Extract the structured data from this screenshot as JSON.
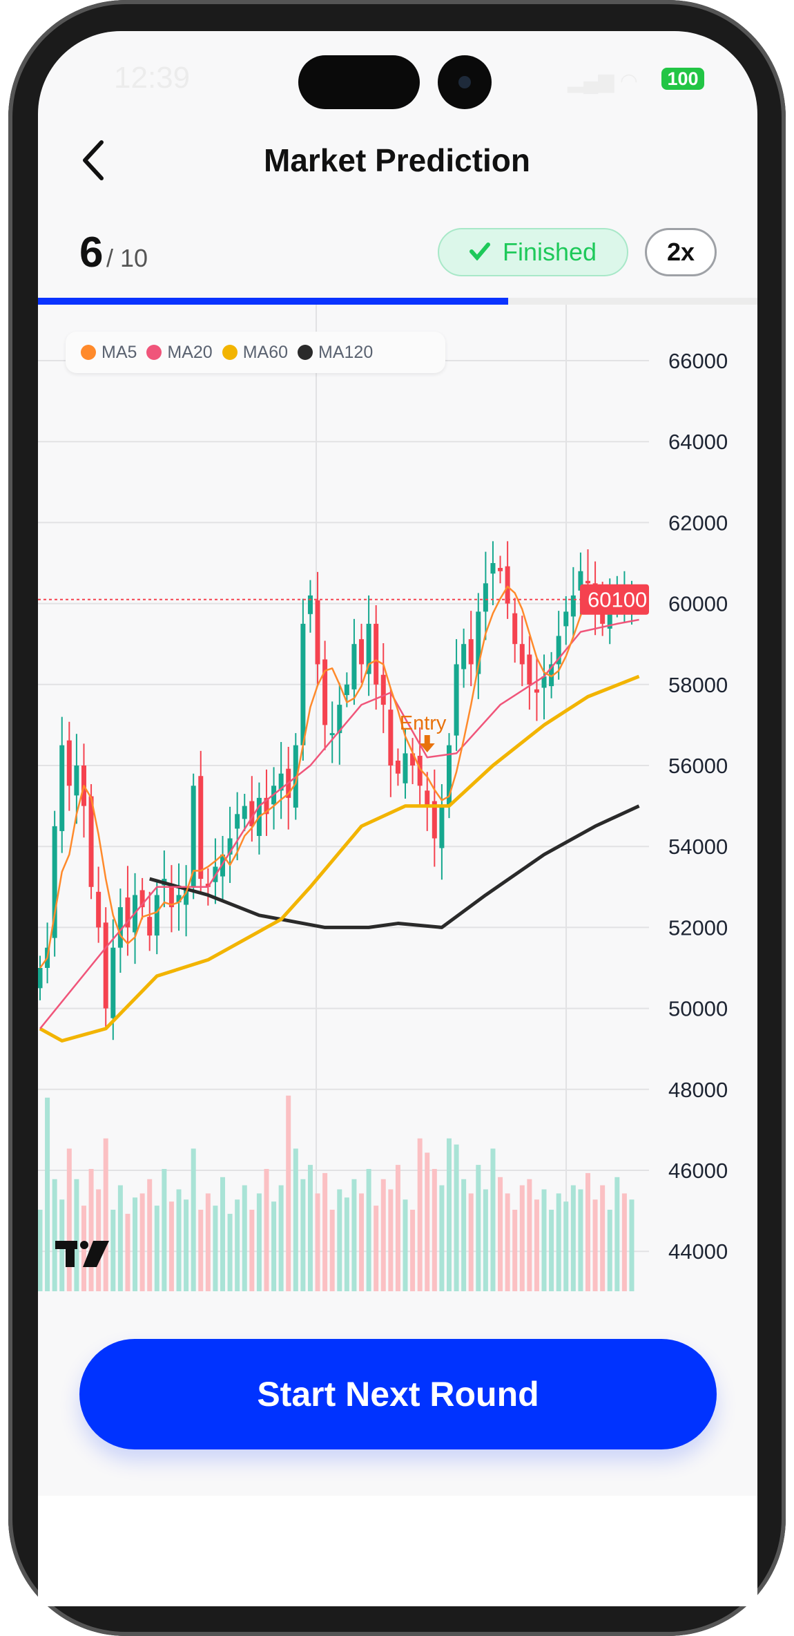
{
  "status_bar": {
    "time": "12:39",
    "battery": "100"
  },
  "header": {
    "title": "Market Prediction",
    "back_icon": "chevron-left-icon"
  },
  "round": {
    "current": "6",
    "total": "/ 10",
    "progress": 0.6
  },
  "status_badge": {
    "label": "Finished",
    "icon": "check-icon",
    "color": "#1ec95a"
  },
  "speed_button": {
    "label": "2x"
  },
  "primary_button": {
    "label": "Start Next Round",
    "color": "#0033ff"
  },
  "chart_data": {
    "type": "candlestick",
    "ylim": [
      43000,
      67000
    ],
    "y_ticks": [
      "66000",
      "64000",
      "62000",
      "60000",
      "58000",
      "56000",
      "54000",
      "52000",
      "50000",
      "48000",
      "46000",
      "44000"
    ],
    "y_tick_values": [
      66000,
      64000,
      62000,
      60000,
      58000,
      56000,
      54000,
      52000,
      50000,
      48000,
      46000,
      44000
    ],
    "last_price": {
      "label": "60100",
      "value": 60100,
      "color": "#f5424f"
    },
    "annotation": {
      "label": "Entry",
      "index": 53,
      "color": "#e8720c"
    },
    "colors": {
      "up": "#16a88f",
      "down": "#f5424f"
    },
    "legend": [
      {
        "name": "MA5",
        "color": "#ff8a2b"
      },
      {
        "name": "MA20",
        "color": "#f0557a"
      },
      {
        "name": "MA60",
        "color": "#f2b400"
      },
      {
        "name": "MA120",
        "color": "#2a2a2a"
      }
    ],
    "closes": [
      51000,
      51500,
      54500,
      56500,
      55500,
      56000,
      55000,
      53000,
      52000,
      50000,
      51500,
      52500,
      52000,
      52800,
      52500,
      51800,
      52800,
      53200,
      52500,
      52800,
      53000,
      55500,
      53200,
      53000,
      53500,
      53800,
      54200,
      54800,
      55000,
      54500,
      55200,
      54800,
      55500,
      55800,
      55200,
      56500,
      59500,
      60200,
      58500,
      57000,
      56800,
      57500,
      58000,
      59000,
      58500,
      59500,
      58000,
      57500,
      56000,
      55800,
      56300,
      56000,
      55500,
      55000,
      54200,
      55000,
      56500,
      58500,
      59000,
      58500,
      59800,
      60500,
      61000,
      60800,
      60000,
      59000,
      58500,
      58000,
      57800,
      58200,
      58500,
      59200,
      59800,
      60200,
      60800,
      60500,
      60000,
      59500,
      60000,
      60300,
      60100,
      60100
    ],
    "volumes": [
      40,
      95,
      55,
      45,
      70,
      55,
      42,
      60,
      50,
      75,
      40,
      52,
      38,
      46,
      48,
      55,
      42,
      60,
      44,
      50,
      45,
      70,
      40,
      48,
      42,
      56,
      38,
      45,
      52,
      40,
      48,
      60,
      44,
      52,
      96,
      70,
      55,
      62,
      48,
      58,
      40,
      50,
      46,
      55,
      48,
      60,
      42,
      55,
      50,
      62,
      45,
      40,
      75,
      68,
      60,
      52,
      75,
      72,
      55,
      48,
      62,
      50,
      70,
      56,
      48,
      40,
      52,
      55,
      45,
      50,
      40,
      48,
      44,
      52,
      50,
      58,
      45,
      52,
      40,
      56,
      48,
      45
    ],
    "ma": {
      "MA5": "computed",
      "MA20": [
        [
          0,
          49500
        ],
        [
          9,
          51500
        ],
        [
          16,
          53000
        ],
        [
          23,
          53000
        ],
        [
          30,
          55000
        ],
        [
          37,
          56000
        ],
        [
          44,
          57500
        ],
        [
          48,
          57800
        ],
        [
          53,
          56200
        ],
        [
          57,
          56300
        ],
        [
          63,
          57500
        ],
        [
          69,
          58200
        ],
        [
          74,
          59300
        ],
        [
          79,
          59500
        ],
        [
          82,
          59600
        ]
      ],
      "MA60": [
        [
          0,
          49500
        ],
        [
          3,
          49200
        ],
        [
          9,
          49500
        ],
        [
          16,
          50800
        ],
        [
          23,
          51200
        ],
        [
          33,
          52200
        ],
        [
          37,
          53000
        ],
        [
          44,
          54500
        ],
        [
          50,
          55000
        ],
        [
          56,
          55000
        ],
        [
          62,
          56000
        ],
        [
          69,
          57000
        ],
        [
          75,
          57700
        ],
        [
          82,
          58200
        ]
      ],
      "MA120": [
        [
          15,
          53200
        ],
        [
          23,
          52800
        ],
        [
          30,
          52300
        ],
        [
          39,
          52000
        ],
        [
          45,
          52000
        ],
        [
          49,
          52100
        ],
        [
          55,
          52000
        ],
        [
          61,
          52800
        ],
        [
          69,
          53800
        ],
        [
          76,
          54500
        ],
        [
          82,
          55000
        ]
      ]
    }
  }
}
